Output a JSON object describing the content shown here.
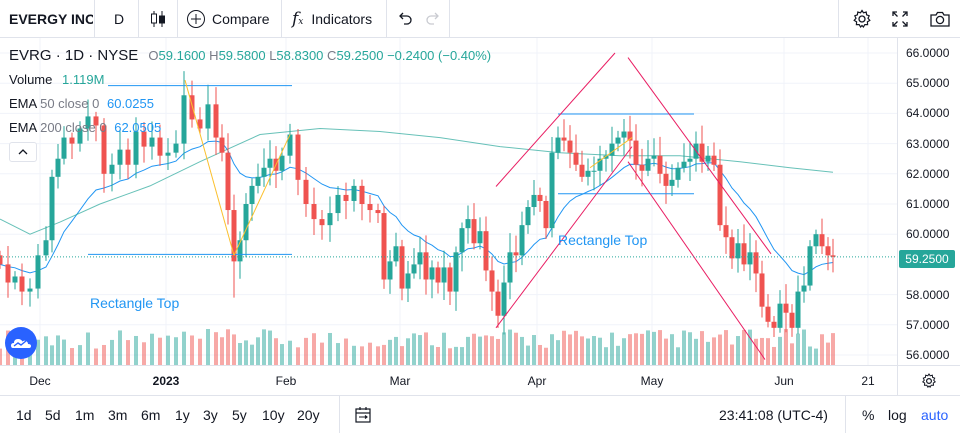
{
  "toolbar": {
    "symbol": "EVERGY INC",
    "interval": "D",
    "compare_label": "Compare",
    "indicators_label": "Indicators"
  },
  "legend": {
    "ticker": "EVRG",
    "interval": "1D",
    "exchange": "NYSE",
    "open_label": "O",
    "open": "59.1600",
    "high_label": "H",
    "high": "59.5800",
    "low_label": "L",
    "low": "58.8300",
    "close_label": "C",
    "close": "59.2500",
    "change": "−0.2400 (−0.40%)",
    "volume_label": "Volume",
    "volume": "1.119M",
    "ema50_label": "EMA",
    "ema50_params": "50 close 0",
    "ema50_value": "60.0255",
    "ema200_label": "EMA",
    "ema200_params": "200 close 0",
    "ema200_value": "62.0505"
  },
  "annotations": {
    "rect_top_1": "Rectangle Top",
    "rect_top_2": "Rectangle Top"
  },
  "price_scale": [
    "66.0000",
    "65.0000",
    "64.0000",
    "63.0000",
    "62.0000",
    "61.0000",
    "60.0000",
    "59.2500",
    "58.0000",
    "57.0000",
    "56.0000"
  ],
  "price_scale_ticks": [
    "66.0000",
    "65.0000",
    "64.0000",
    "63.0000",
    "62.0000",
    "61.0000",
    "60.0000",
    "58.0000",
    "57.0000",
    "56.0000"
  ],
  "current_price": "59.2500",
  "time_scale": [
    "Dec",
    "2023",
    "Feb",
    "Mar",
    "Apr",
    "May",
    "Jun",
    "21"
  ],
  "ranges": [
    "1d",
    "5d",
    "1m",
    "3m",
    "6m",
    "1y",
    "3y",
    "5y",
    "10y",
    "20y"
  ],
  "clock": "23:41:08 (UTC-4)",
  "bottom_right": {
    "percent": "%",
    "log": "log",
    "auto": "auto"
  },
  "colors": {
    "up": "#26a69a",
    "down": "#ef5350",
    "ema": "#2196f3",
    "accent": "#2962ff"
  },
  "chart_data": {
    "type": "candlestick",
    "ylim": [
      55.7,
      66.3
    ],
    "x_labels": [
      "Dec",
      "2023",
      "Feb",
      "Mar",
      "Apr",
      "May",
      "Jun",
      "21"
    ],
    "ohlc_sample_last": {
      "open": 59.16,
      "high": 59.58,
      "low": 58.83,
      "close": 59.25
    }
  }
}
